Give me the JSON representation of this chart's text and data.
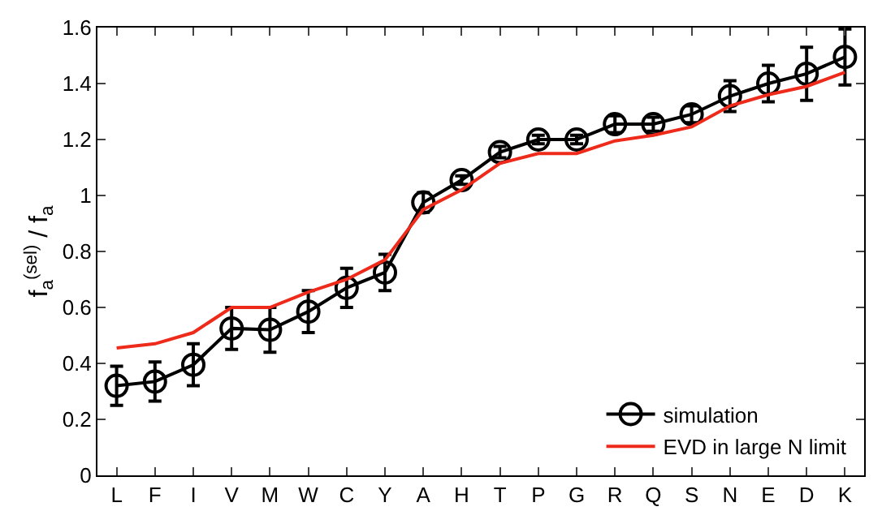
{
  "chart_data": {
    "type": "line",
    "ylabel": "f$_{a}$$^{(sel)}$ / f$_{a}$",
    "categories": [
      "L",
      "F",
      "I",
      "V",
      "M",
      "W",
      "C",
      "Y",
      "A",
      "H",
      "T",
      "P",
      "G",
      "R",
      "Q",
      "S",
      "N",
      "E",
      "D",
      "K"
    ],
    "series": [
      {
        "name": "simulation",
        "color": "#000000",
        "marker": "circle",
        "values": [
          0.32,
          0.335,
          0.395,
          0.525,
          0.52,
          0.585,
          0.67,
          0.725,
          0.975,
          1.055,
          1.155,
          1.2,
          1.2,
          1.255,
          1.255,
          1.29,
          1.355,
          1.4,
          1.435,
          1.495
        ],
        "errors": [
          0.07,
          0.07,
          0.075,
          0.075,
          0.08,
          0.075,
          0.07,
          0.065,
          0.035,
          0.015,
          0.02,
          0.015,
          0.015,
          0.03,
          0.025,
          0.03,
          0.055,
          0.065,
          0.095,
          0.1
        ]
      },
      {
        "name": "EVD in large N limit",
        "color": "#ee2a1b",
        "values": [
          0.455,
          0.47,
          0.51,
          0.6,
          0.6,
          0.655,
          0.7,
          0.77,
          0.95,
          1.02,
          1.115,
          1.15,
          1.15,
          1.195,
          1.215,
          1.245,
          1.32,
          1.36,
          1.39,
          1.44
        ]
      }
    ],
    "ylim": [
      0,
      1.6
    ],
    "yticks": [
      0,
      0.2,
      0.4,
      0.6,
      0.8,
      1,
      1.2,
      1.4,
      1.6
    ],
    "legend": "bottom right"
  }
}
